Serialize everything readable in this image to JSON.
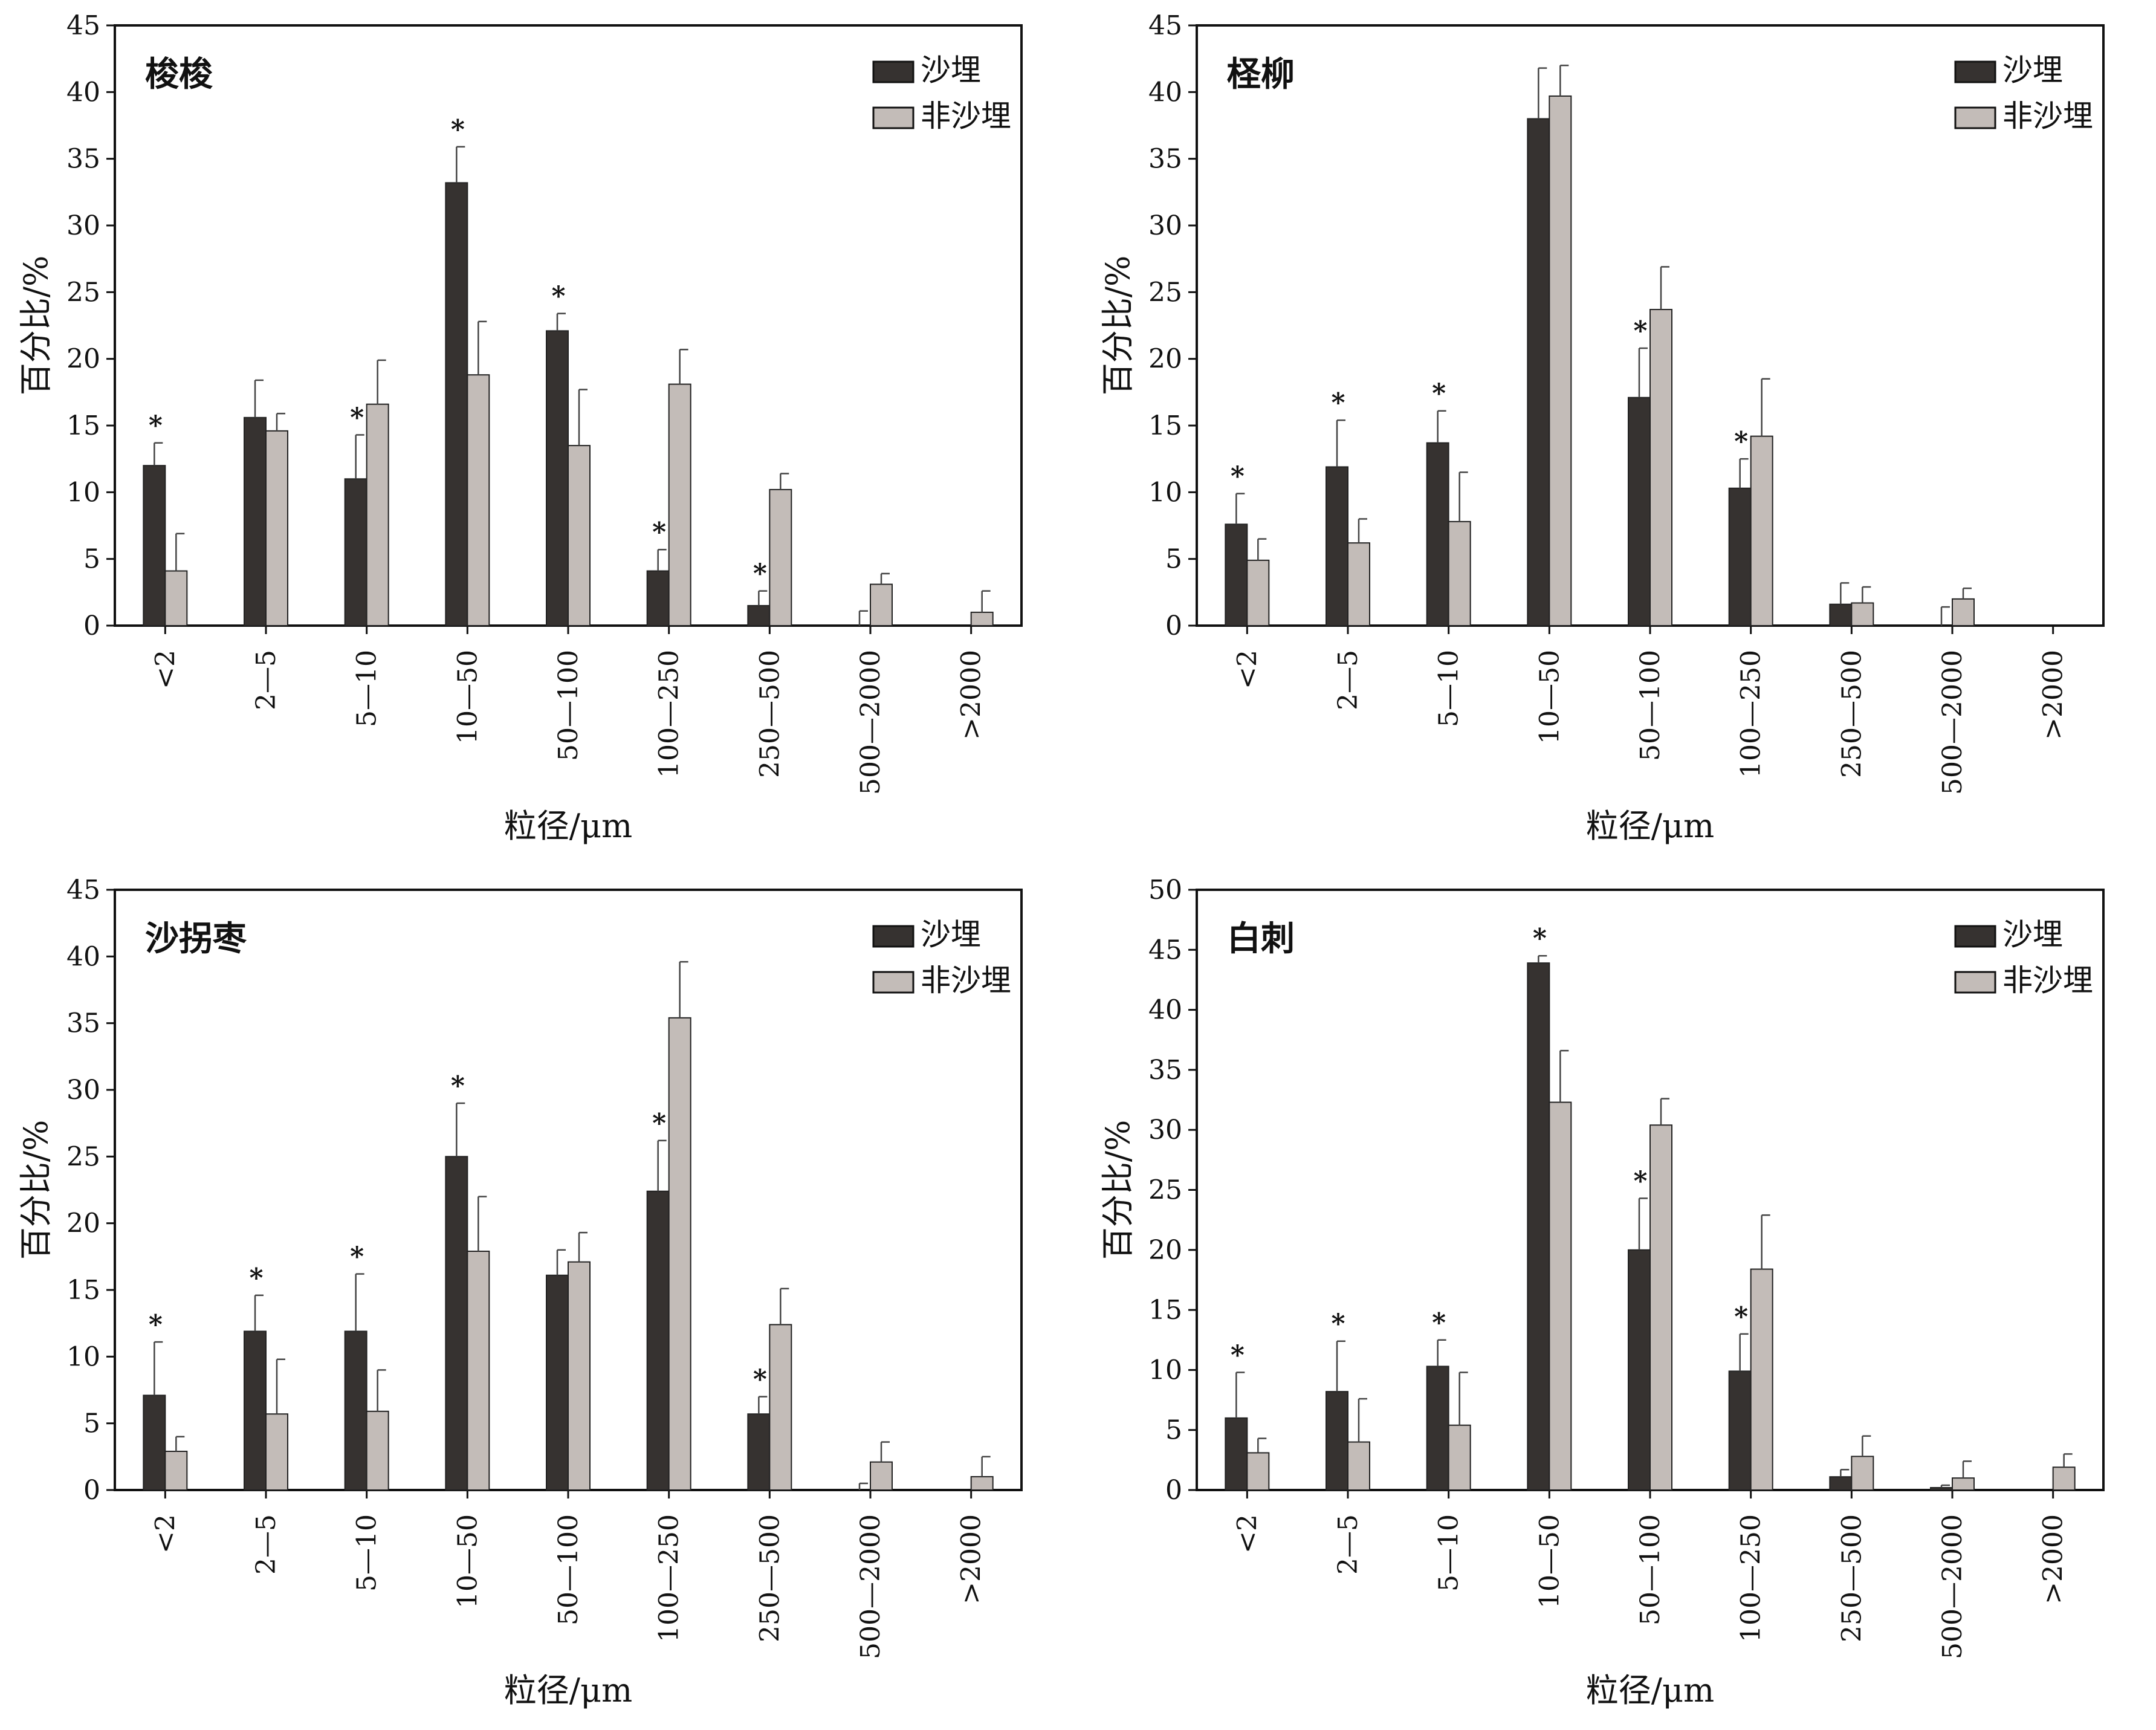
{
  "colors": {
    "buried": "#363230",
    "unburied": "#c3bcb8",
    "axis": "#111111",
    "error": "#444444"
  },
  "chart_data": [
    {
      "type": "bar",
      "title": "梭梭",
      "xlabel": "粒径/μm",
      "ylabel": "百分比/%",
      "ylim": [
        0,
        45
      ],
      "yticks": [
        "0",
        "5",
        "10",
        "15",
        "20",
        "25",
        "30",
        "35",
        "40",
        "45"
      ],
      "categories": [
        "<2",
        "2—5",
        "5—10",
        "10—50",
        "50—100",
        "100—250",
        "250—500",
        "500—2000",
        ">2000"
      ],
      "legend_position": "top-right",
      "significance_mark": "*",
      "series": [
        {
          "name": "沙埋",
          "values": [
            12.0,
            15.6,
            11.0,
            33.2,
            22.1,
            4.1,
            1.5,
            0,
            0
          ],
          "error": [
            1.7,
            2.8,
            3.3,
            2.7,
            1.3,
            1.6,
            1.1,
            1.1,
            0
          ]
        },
        {
          "name": "非沙埋",
          "values": [
            4.1,
            14.6,
            16.6,
            18.8,
            13.5,
            18.1,
            10.2,
            3.1,
            1.0
          ],
          "error": [
            2.8,
            1.3,
            3.3,
            4.0,
            4.2,
            2.6,
            1.2,
            0.8,
            1.6
          ]
        }
      ],
      "significant": [
        true,
        false,
        true,
        true,
        true,
        true,
        true,
        false,
        false
      ]
    },
    {
      "type": "bar",
      "title": "柽柳",
      "xlabel": "粒径/μm",
      "ylabel": "百分比/%",
      "ylim": [
        0,
        45
      ],
      "yticks": [
        "0",
        "5",
        "10",
        "15",
        "20",
        "25",
        "30",
        "35",
        "40",
        "45"
      ],
      "categories": [
        "<2",
        "2—5",
        "5—10",
        "10—50",
        "50—100",
        "100—250",
        "250—500",
        "500—2000",
        ">2000"
      ],
      "legend_position": "top-right",
      "significance_mark": "*",
      "series": [
        {
          "name": "沙埋",
          "values": [
            7.6,
            11.9,
            13.7,
            38.0,
            17.1,
            10.3,
            1.6,
            0,
            0
          ],
          "error": [
            2.3,
            3.5,
            2.4,
            3.8,
            3.7,
            2.2,
            1.6,
            1.4,
            0
          ]
        },
        {
          "name": "非沙埋",
          "values": [
            4.9,
            6.2,
            7.8,
            39.7,
            23.7,
            14.2,
            1.7,
            2.0,
            0
          ],
          "error": [
            1.6,
            1.8,
            3.7,
            2.3,
            3.2,
            4.3,
            1.2,
            0.8,
            0
          ]
        }
      ],
      "significant": [
        true,
        true,
        true,
        false,
        true,
        true,
        false,
        false,
        false
      ]
    },
    {
      "type": "bar",
      "title": "沙拐枣",
      "xlabel": "粒径/μm",
      "ylabel": "百分比/%",
      "ylim": [
        0,
        45
      ],
      "yticks": [
        "0",
        "5",
        "10",
        "15",
        "20",
        "25",
        "30",
        "35",
        "40",
        "45"
      ],
      "categories": [
        "<2",
        "2—5",
        "5—10",
        "10—50",
        "50—100",
        "100—250",
        "250—500",
        "500—2000",
        ">2000"
      ],
      "legend_position": "top-right",
      "significance_mark": "*",
      "series": [
        {
          "name": "沙埋",
          "values": [
            7.1,
            11.9,
            11.9,
            25.0,
            16.1,
            22.4,
            5.7,
            0,
            0
          ],
          "error": [
            4.0,
            2.7,
            4.3,
            4.0,
            1.9,
            3.8,
            1.3,
            0.5,
            0
          ]
        },
        {
          "name": "非沙埋",
          "values": [
            2.9,
            5.7,
            5.9,
            17.9,
            17.1,
            35.4,
            12.4,
            2.1,
            1.0
          ],
          "error": [
            1.1,
            4.1,
            3.1,
            4.1,
            2.2,
            4.2,
            2.7,
            1.5,
            1.5
          ]
        }
      ],
      "significant": [
        true,
        true,
        true,
        true,
        false,
        true,
        true,
        false,
        false
      ]
    },
    {
      "type": "bar",
      "title": "白刺",
      "xlabel": "粒径/μm",
      "ylabel": "百分比/%",
      "ylim": [
        0,
        50
      ],
      "yticks": [
        "0",
        "5",
        "10",
        "15",
        "20",
        "25",
        "30",
        "35",
        "40",
        "45",
        "50"
      ],
      "categories": [
        "<2",
        "2—5",
        "5—10",
        "10—50",
        "50—100",
        "100—250",
        "250—500",
        "500—2000",
        ">2000"
      ],
      "legend_position": "top-right",
      "significance_mark": "*",
      "series": [
        {
          "name": "沙埋",
          "values": [
            6.0,
            8.2,
            10.3,
            43.9,
            20.0,
            9.9,
            1.1,
            0.2,
            0
          ],
          "error": [
            3.8,
            4.2,
            2.2,
            0.6,
            4.3,
            3.1,
            0.6,
            0.2,
            0
          ]
        },
        {
          "name": "非沙埋",
          "values": [
            3.1,
            4.0,
            5.4,
            32.3,
            30.4,
            18.4,
            2.8,
            1.0,
            1.9
          ],
          "error": [
            1.2,
            3.6,
            4.4,
            4.3,
            2.2,
            4.5,
            1.7,
            1.4,
            1.1
          ]
        }
      ],
      "significant": [
        true,
        true,
        true,
        true,
        true,
        true,
        false,
        false,
        false
      ]
    }
  ]
}
